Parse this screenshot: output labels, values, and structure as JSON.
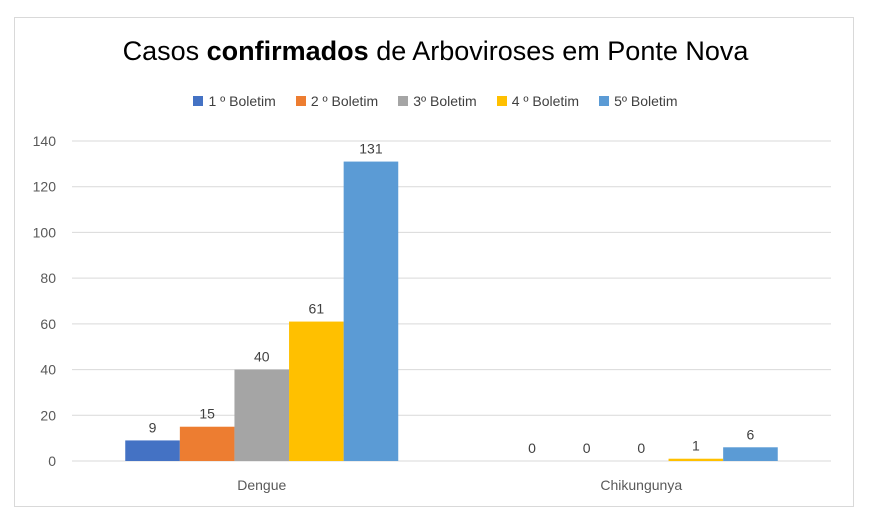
{
  "chart_data": {
    "type": "bar",
    "title": {
      "pre": "Casos ",
      "bold": "confirmados",
      "post": " de Arboviroses em Ponte Nova"
    },
    "categories": [
      "Dengue",
      "Chikungunya"
    ],
    "series": [
      {
        "name": "1 º Boletim",
        "color": "#4472c4",
        "values": [
          9,
          0
        ]
      },
      {
        "name": "2 º Boletim",
        "color": "#ed7d31",
        "values": [
          15,
          0
        ]
      },
      {
        "name": "3º Boletim",
        "color": "#a5a5a5",
        "values": [
          40,
          0
        ]
      },
      {
        "name": "4 º Boletim",
        "color": "#ffc000",
        "values": [
          61,
          1
        ]
      },
      {
        "name": "5º Boletim",
        "color": "#5b9bd5",
        "values": [
          131,
          6
        ]
      }
    ],
    "y_ticks": [
      0,
      20,
      40,
      60,
      80,
      100,
      120,
      140
    ],
    "ylim": [
      0,
      140
    ],
    "grid": true,
    "legend_position": "top",
    "data_labels": true,
    "xlabel": "",
    "ylabel": ""
  }
}
